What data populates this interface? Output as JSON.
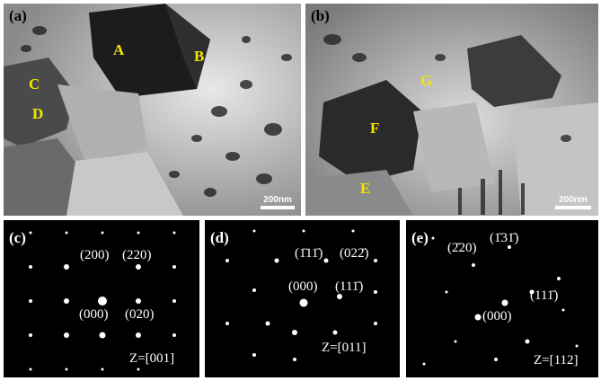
{
  "panels": {
    "a": {
      "label": "(a)",
      "scale": "200nm",
      "grains": [
        "A",
        "B",
        "C",
        "D"
      ]
    },
    "b": {
      "label": "(b)",
      "scale": "200nm",
      "grains": [
        "G",
        "F",
        "E"
      ]
    },
    "c": {
      "label": "(c)",
      "indices": [
        "(200)",
        "(220)",
        "(000)",
        "(020)"
      ],
      "zone": "Z=[001]"
    },
    "d": {
      "label": "(d)",
      "indices": [
        "(1̄11̄)",
        "(022̄)",
        "(000)",
        "(111̄)"
      ],
      "zone": "Z=[011]"
    },
    "e": {
      "label": "(e)",
      "indices": [
        "(2̄20)",
        "(1̄31̄)",
        "(111̄)",
        "(000)"
      ],
      "zone": "Z=[112]"
    }
  },
  "colors": {
    "grain_label": "#f2e600",
    "spot": "#ffffff",
    "background_diffraction": "#000000"
  }
}
